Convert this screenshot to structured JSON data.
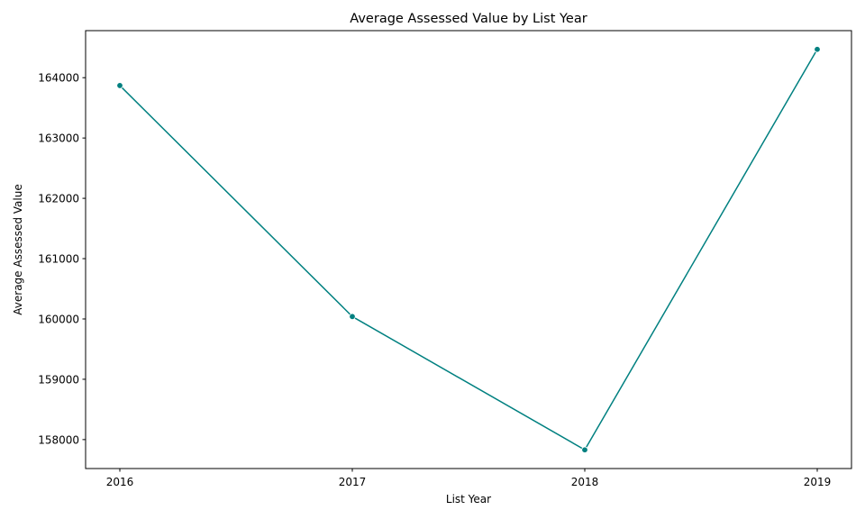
{
  "chart_data": {
    "type": "line",
    "title": "Average Assessed Value by List Year",
    "xlabel": "List Year",
    "ylabel": "Average Assessed Value",
    "x": [
      "2016",
      "2017",
      "2018",
      "2019"
    ],
    "series": [
      {
        "values": [
          163870,
          160040,
          157830,
          164470
        ],
        "color": "#008080",
        "marker": "circle"
      }
    ],
    "yticks": [
      158000,
      159000,
      160000,
      161000,
      162000,
      163000,
      164000
    ],
    "ylim": [
      157520,
      164780
    ],
    "grid": false
  }
}
